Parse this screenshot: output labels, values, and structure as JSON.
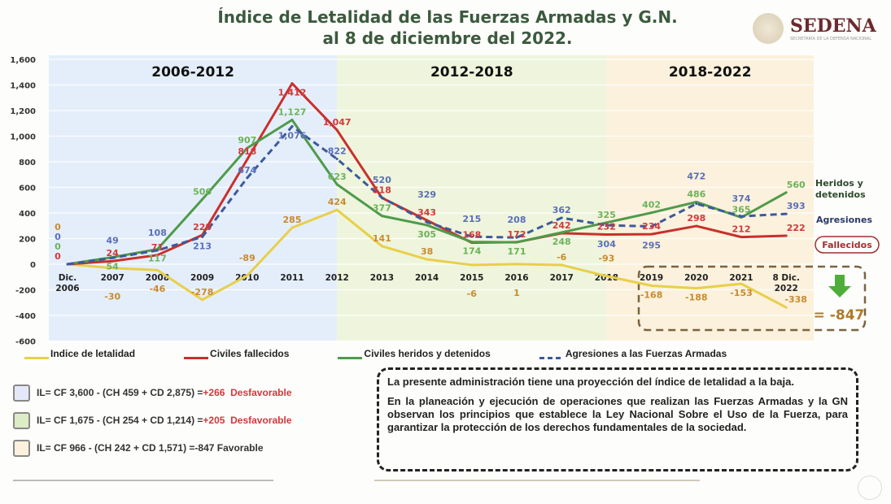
{
  "header": {
    "title_line1": "Índice de Letalidad de las Fuerzas Armadas y G.N.",
    "title_line2": "al 8 de diciembre del 2022.",
    "brand": "SEDENA",
    "brand_sub": "SECRETARÍA DE LA DEFENSA NACIONAL"
  },
  "chart_data": {
    "type": "line",
    "ylim": [
      -600,
      1600
    ],
    "yticks": [
      "1,600",
      "1,400",
      "1,200",
      "1,000",
      "800",
      "600",
      "400",
      "200",
      "0",
      "-200",
      "-400",
      "-600"
    ],
    "ytick_values": [
      1600,
      1400,
      1200,
      1000,
      800,
      600,
      400,
      200,
      0,
      -200,
      -400,
      -600
    ],
    "grid": true,
    "categories": [
      "Dic. 2006",
      "2007",
      "2008",
      "2009",
      "2010",
      "2011",
      "2012",
      "2013",
      "2014",
      "2015",
      "2016",
      "2017",
      "2018",
      "2019",
      "2020",
      "2021",
      "8 Dic. 2022"
    ],
    "periods": [
      {
        "label": "2006-2012",
        "from": "Dic. 2006",
        "to": "2012",
        "color": "#e4eefb"
      },
      {
        "label": "2012-2018",
        "from": "2012",
        "to": "2018",
        "color": "#eef5dc"
      },
      {
        "label": "2018-2022",
        "from": "2018",
        "to": "8 Dic. 2022",
        "color": "#fbf1dc"
      }
    ],
    "series": [
      {
        "name": "Indice de letalidad",
        "color": "#e8cf4a",
        "label_color": "#c98a2e",
        "dashed": false,
        "values": [
          0,
          -30,
          -46,
          -278,
          -89,
          285,
          424,
          141,
          38,
          -6,
          1,
          -6,
          -93,
          -168,
          -188,
          -153,
          -338
        ]
      },
      {
        "name": "Civiles fallecidos",
        "color": "#c9302c",
        "label_color": "#d0393c",
        "dashed": false,
        "values": [
          0,
          24,
          71,
          228,
          818,
          1412,
          1047,
          518,
          343,
          168,
          172,
          242,
          232,
          234,
          298,
          212,
          222
        ]
      },
      {
        "name": "Civiles heridos y detenidos",
        "color": "#4f9a4a",
        "label_color": "#6cb25a",
        "dashed": false,
        "values": [
          0,
          54,
          117,
          506,
          907,
          1127,
          623,
          377,
          305,
          174,
          171,
          248,
          325,
          402,
          486,
          365,
          560
        ]
      },
      {
        "name": "Agresiones a las Fuerzas Armadas",
        "color": "#3d5a9a",
        "label_color": "#5a6fb8",
        "dashed": true,
        "values": [
          0,
          49,
          108,
          213,
          674,
          1076,
          822,
          520,
          329,
          215,
          208,
          362,
          304,
          295,
          472,
          374,
          393
        ]
      }
    ],
    "end_labels": {
      "green": "Heridos y detenidos",
      "blue": "Agresiones",
      "red": "Fallecidos"
    },
    "total": "= -847"
  },
  "formulas": [
    {
      "text": "IL= CF 3,600 - (CH 459 + CD 2,875) = ",
      "result": "+266",
      "verdict": "Desfavorable",
      "box_color": "#e4e8f8",
      "favorable": false
    },
    {
      "text": "IL= CF 1,675 - (CH 254 + CD 1,214) = ",
      "result": "+205",
      "verdict": "Desfavorable",
      "box_color": "#dcecc4",
      "favorable": false
    },
    {
      "text": "IL= CF 966 - (CH 242 + CD 1,571) = ",
      "result": "-847",
      "verdict": "Favorable",
      "box_color": "#fbf1dc",
      "favorable": true
    }
  ],
  "note": {
    "p1": "La presente administración tiene una proyección del índice de letalidad a la baja.",
    "p2": "En la planeación y ejecución de operaciones que realizan las Fuerzas Armadas y la GN observan los principios que establece la Ley Nacional Sobre el Uso de la Fuerza, para garantizar la protección de los derechos fundamentales de la sociedad."
  }
}
